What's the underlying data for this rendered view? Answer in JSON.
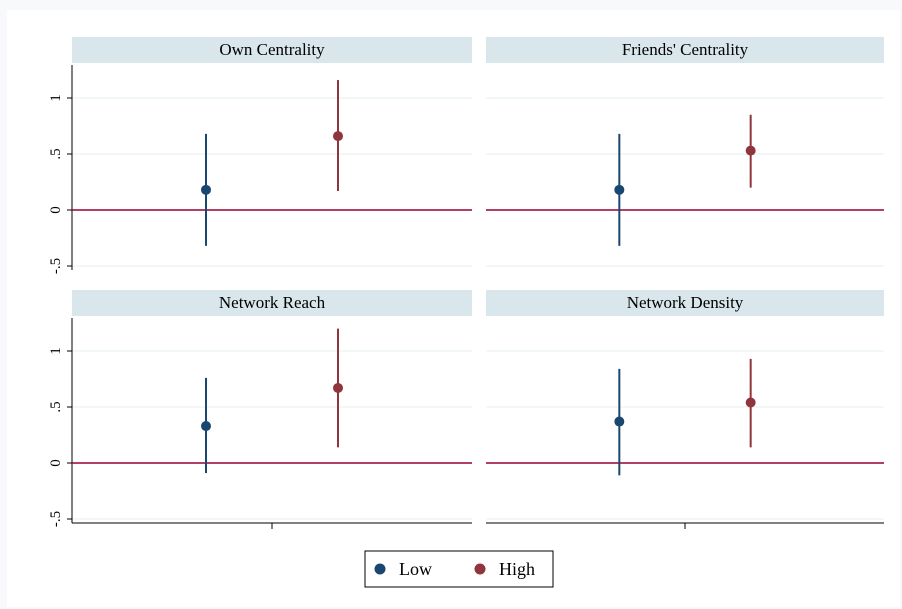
{
  "chart_data": {
    "type": "scatter",
    "chart_style": "coefficient plot with confidence intervals, 2x2 small multiples",
    "yticks": [
      "-.5",
      "0",
      ".5",
      "1"
    ],
    "ytick_values": [
      -0.5,
      0,
      0.5,
      1
    ],
    "ylim": [
      -0.55,
      1.3
    ],
    "reference_line": 0,
    "grid": true,
    "legend_position": "bottom-center",
    "colors": {
      "Low": "#1a476f",
      "High": "#90353b",
      "reference": "#990033",
      "strip": "#d9e6eb",
      "grid": "#eaf2f3"
    },
    "legend": [
      "Low",
      "High"
    ],
    "panels": [
      {
        "title": "Own Centrality",
        "series": [
          {
            "name": "Low",
            "estimate": 0.18,
            "ci_low": -0.32,
            "ci_high": 0.68
          },
          {
            "name": "High",
            "estimate": 0.66,
            "ci_low": 0.17,
            "ci_high": 1.16
          }
        ]
      },
      {
        "title": "Friends' Centrality",
        "series": [
          {
            "name": "Low",
            "estimate": 0.18,
            "ci_low": -0.32,
            "ci_high": 0.68
          },
          {
            "name": "High",
            "estimate": 0.53,
            "ci_low": 0.2,
            "ci_high": 0.85
          }
        ]
      },
      {
        "title": "Network Reach",
        "series": [
          {
            "name": "Low",
            "estimate": 0.33,
            "ci_low": -0.09,
            "ci_high": 0.76
          },
          {
            "name": "High",
            "estimate": 0.67,
            "ci_low": 0.14,
            "ci_high": 1.2
          }
        ]
      },
      {
        "title": "Network Density",
        "series": [
          {
            "name": "Low",
            "estimate": 0.37,
            "ci_low": -0.11,
            "ci_high": 0.84
          },
          {
            "name": "High",
            "estimate": 0.54,
            "ci_low": 0.14,
            "ci_high": 0.93
          }
        ]
      }
    ]
  }
}
